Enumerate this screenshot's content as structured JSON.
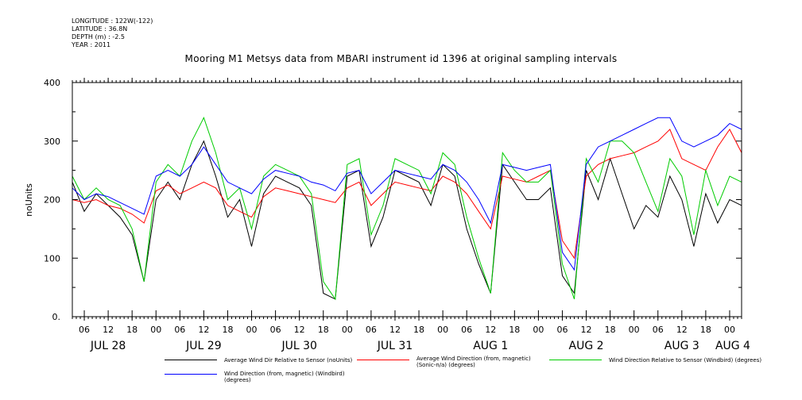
{
  "header": {
    "longitude": "LONGITUDE : 122W(-122)",
    "latitude": "LATITUDE : 36.8N",
    "depth": "DEPTH (m) : -2.5",
    "year": "YEAR : 2011"
  },
  "chart_data": {
    "type": "line",
    "title": "Mooring M1 Metsys data from MBARI instrument id 1396 at original sampling intervals",
    "xlabel": "",
    "ylabel": "noUnits",
    "ylim": [
      0,
      400
    ],
    "y_ticks": [
      "0.",
      "100",
      "200",
      "300",
      "400"
    ],
    "x_unit": "hours since JUL 28 00:00",
    "xlim": [
      3,
      171
    ],
    "x_hour_ticks": [
      "06",
      "12",
      "18",
      "00",
      "06",
      "12",
      "18",
      "00",
      "06",
      "12",
      "18",
      "00",
      "06",
      "12",
      "18",
      "00",
      "06",
      "12",
      "18",
      "00",
      "06",
      "12",
      "18",
      "00",
      "06",
      "12",
      "18",
      "00"
    ],
    "x_day_labels": [
      "JUL 28",
      "JUL 29",
      "JUL 30",
      "JUL 31",
      "AUG  1",
      "AUG  2",
      "AUG  3",
      "AUG  4"
    ],
    "grid": false,
    "legend_position": "bottom",
    "colors": {
      "black": "#000000",
      "red": "#ff0000",
      "green": "#00cc00",
      "blue": "#0000ff"
    },
    "series": [
      {
        "name": "Average Wind Dir Relative to Sensor (noUnits)",
        "color": "#000000",
        "x": [
          3,
          6,
          9,
          12,
          15,
          18,
          21,
          24,
          27,
          30,
          33,
          36,
          39,
          42,
          45,
          48,
          51,
          54,
          57,
          60,
          63,
          66,
          69,
          72,
          75,
          78,
          81,
          84,
          87,
          90,
          93,
          96,
          99,
          102,
          105,
          108,
          111,
          114,
          117,
          120,
          123,
          126,
          129,
          132,
          135,
          138,
          141,
          144,
          147,
          150,
          153,
          156,
          159,
          162,
          165,
          168,
          171
        ],
        "y": [
          230,
          180,
          210,
          190,
          170,
          140,
          60,
          200,
          230,
          200,
          260,
          300,
          240,
          170,
          200,
          120,
          210,
          240,
          230,
          220,
          190,
          40,
          30,
          240,
          250,
          120,
          170,
          250,
          240,
          230,
          190,
          260,
          240,
          150,
          90,
          40,
          260,
          230,
          200,
          200,
          220,
          70,
          40,
          250,
          200,
          270,
          210,
          150,
          190,
          170,
          240,
          200,
          120,
          210,
          160,
          200,
          190
        ]
      },
      {
        "name": "Average Wind Direction (from, magnetic) (Sonic-n/a) (degrees)",
        "color": "#ff0000",
        "x": [
          3,
          6,
          9,
          12,
          15,
          18,
          21,
          24,
          27,
          30,
          33,
          36,
          39,
          42,
          45,
          48,
          51,
          54,
          57,
          60,
          63,
          66,
          69,
          72,
          75,
          78,
          81,
          84,
          87,
          90,
          93,
          96,
          99,
          102,
          105,
          108,
          111,
          114,
          117,
          120,
          123,
          126,
          129,
          132,
          135,
          138,
          141,
          144,
          147,
          150,
          153,
          156,
          159,
          162,
          165,
          168,
          171
        ],
        "y": [
          200,
          195,
          200,
          190,
          185,
          175,
          160,
          215,
          225,
          210,
          220,
          230,
          220,
          190,
          180,
          170,
          205,
          220,
          215,
          210,
          205,
          200,
          195,
          220,
          230,
          190,
          210,
          230,
          225,
          220,
          215,
          240,
          230,
          210,
          180,
          150,
          240,
          235,
          230,
          240,
          250,
          130,
          100,
          240,
          260,
          270,
          275,
          280,
          290,
          300,
          320,
          270,
          260,
          250,
          290,
          320,
          280
        ]
      },
      {
        "name": "Wind Direction Relative to Sensor (Windbird) (degrees)",
        "color": "#00cc00",
        "x": [
          3,
          6,
          9,
          12,
          15,
          18,
          21,
          24,
          27,
          30,
          33,
          36,
          39,
          42,
          45,
          48,
          51,
          54,
          57,
          60,
          63,
          66,
          69,
          72,
          75,
          78,
          81,
          84,
          87,
          90,
          93,
          96,
          99,
          102,
          105,
          108,
          111,
          114,
          117,
          120,
          123,
          126,
          129,
          132,
          135,
          138,
          141,
          144,
          147,
          150,
          153,
          156,
          159,
          162,
          165,
          168,
          171
        ],
        "y": [
          240,
          200,
          220,
          200,
          190,
          150,
          60,
          230,
          260,
          240,
          300,
          340,
          280,
          200,
          220,
          150,
          240,
          260,
          250,
          240,
          210,
          60,
          30,
          260,
          270,
          140,
          190,
          270,
          260,
          250,
          210,
          280,
          260,
          170,
          100,
          40,
          280,
          250,
          230,
          230,
          250,
          90,
          30,
          270,
          230,
          300,
          300,
          280,
          230,
          180,
          270,
          240,
          140,
          250,
          190,
          240,
          230
        ]
      },
      {
        "name": "Wind Direction (from, magnetic) (Windbird) (degrees)",
        "color": "#0000ff",
        "x": [
          3,
          6,
          9,
          12,
          15,
          18,
          21,
          24,
          27,
          30,
          33,
          36,
          39,
          42,
          45,
          48,
          51,
          54,
          57,
          60,
          63,
          66,
          69,
          72,
          75,
          78,
          81,
          84,
          87,
          90,
          93,
          96,
          99,
          102,
          105,
          108,
          111,
          114,
          117,
          120,
          123,
          126,
          129,
          132,
          135,
          138,
          141,
          144,
          147,
          150,
          153,
          156,
          159,
          162,
          165,
          168,
          171
        ],
        "y": [
          220,
          200,
          210,
          205,
          195,
          185,
          175,
          240,
          250,
          240,
          260,
          290,
          260,
          230,
          220,
          210,
          235,
          250,
          245,
          240,
          230,
          225,
          215,
          245,
          250,
          210,
          230,
          250,
          245,
          240,
          235,
          260,
          250,
          230,
          200,
          160,
          260,
          255,
          250,
          255,
          260,
          110,
          80,
          260,
          290,
          300,
          310,
          320,
          330,
          340,
          340,
          300,
          290,
          300,
          310,
          330,
          320
        ]
      }
    ]
  }
}
